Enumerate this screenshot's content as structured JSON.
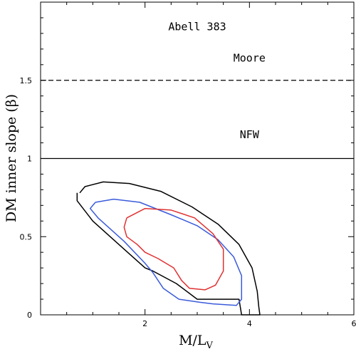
{
  "chart_data": {
    "type": "line",
    "title": "",
    "xlabel": "M/L",
    "xlabel_sub": "V",
    "ylabel": "DM inner slope (β)",
    "xlim": [
      0,
      6
    ],
    "ylim": [
      0,
      2
    ],
    "grid": false,
    "x_ticks": [
      2,
      4,
      6
    ],
    "x_tick_labels": [
      "2",
      "4",
      "6"
    ],
    "y_ticks": [
      0,
      0.5,
      1,
      1.5
    ],
    "y_tick_labels": [
      "0",
      "0.5",
      "1",
      "1.5"
    ],
    "annotations": [
      {
        "text": "Abell 383",
        "x": 3.0,
        "y": 1.82
      },
      {
        "text": "Moore",
        "x": 4.0,
        "y": 1.62
      },
      {
        "text": "NFW",
        "x": 4.0,
        "y": 1.13
      }
    ],
    "reference_lines": [
      {
        "name": "Moore",
        "y": 1.5,
        "style": "dashed",
        "color": "#000000"
      },
      {
        "name": "NFW",
        "y": 1.0,
        "style": "solid",
        "color": "#000000"
      }
    ],
    "series": [
      {
        "color": "#000000",
        "x": [
          0.75,
          0.85,
          1.2,
          1.7,
          2.3,
          2.9,
          3.4,
          3.8,
          4.05,
          4.15,
          4.18,
          4.2,
          3.85,
          3.8,
          3.5,
          3.0,
          2.6,
          2.15,
          2.0,
          1.6,
          1.0,
          0.7,
          0.7
        ],
        "y": [
          0.78,
          0.82,
          0.85,
          0.84,
          0.79,
          0.69,
          0.58,
          0.45,
          0.3,
          0.15,
          0.05,
          0.0,
          0.0,
          0.1,
          0.1,
          0.1,
          0.2,
          0.28,
          0.3,
          0.42,
          0.6,
          0.73,
          0.78
        ]
      },
      {
        "color": "#3b5bdb",
        "x": [
          1.05,
          1.4,
          1.9,
          2.5,
          3.0,
          3.4,
          3.7,
          3.85,
          3.85,
          3.75,
          3.3,
          3.05,
          2.65,
          2.35,
          2.15,
          2.0,
          1.6,
          1.1,
          0.95,
          1.05
        ],
        "y": [
          0.72,
          0.74,
          0.72,
          0.64,
          0.57,
          0.48,
          0.37,
          0.25,
          0.1,
          0.06,
          0.07,
          0.08,
          0.1,
          0.17,
          0.27,
          0.33,
          0.47,
          0.62,
          0.68,
          0.72
        ]
      },
      {
        "color": "#e03131",
        "x": [
          1.65,
          2.0,
          2.5,
          2.95,
          3.3,
          3.5,
          3.5,
          3.35,
          3.15,
          2.85,
          2.7,
          2.55,
          2.25,
          2.0,
          1.85,
          1.65,
          1.6,
          1.65
        ],
        "y": [
          0.62,
          0.68,
          0.67,
          0.62,
          0.52,
          0.42,
          0.28,
          0.19,
          0.16,
          0.17,
          0.22,
          0.3,
          0.36,
          0.4,
          0.45,
          0.5,
          0.56,
          0.62
        ]
      }
    ]
  }
}
